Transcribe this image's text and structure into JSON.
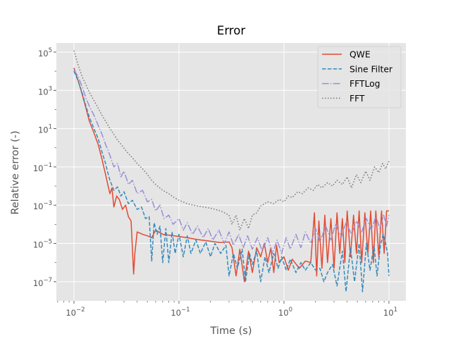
{
  "chart_data": {
    "type": "line",
    "title": "Error",
    "xlabel": "Time (s)",
    "ylabel": "Relative error (-)",
    "xscale": "log",
    "yscale": "log",
    "xlim": [
      0.0068,
      14.5
    ],
    "ylim": [
      1e-08,
      300000.0
    ],
    "grid": true,
    "legend_position": "top-right",
    "x_ticks": [
      0.01,
      0.1,
      1,
      10
    ],
    "x_tick_labels": [
      {
        "base": "10",
        "exp": "−2"
      },
      {
        "base": "10",
        "exp": "−1"
      },
      {
        "base": "10",
        "exp": "0"
      },
      {
        "base": "10",
        "exp": "1"
      }
    ],
    "y_ticks": [
      1e-07,
      1e-05,
      0.001,
      0.1,
      10,
      1000,
      100000
    ],
    "y_tick_labels": [
      {
        "base": "10",
        "exp": "−7"
      },
      {
        "base": "10",
        "exp": "−5"
      },
      {
        "base": "10",
        "exp": "−3"
      },
      {
        "base": "10",
        "exp": "−1"
      },
      {
        "base": "10",
        "exp": "1"
      },
      {
        "base": "10",
        "exp": "3"
      },
      {
        "base": "10",
        "exp": "5"
      }
    ],
    "series": [
      {
        "name": "QWE",
        "color": "#E24A33",
        "dash": "solid",
        "points": [
          [
            0.01,
            15000.0
          ],
          [
            0.011,
            3000.0
          ],
          [
            0.012,
            600
          ],
          [
            0.013,
            120
          ],
          [
            0.014,
            25
          ],
          [
            0.0155,
            6
          ],
          [
            0.017,
            1.5
          ],
          [
            0.0185,
            0.25
          ],
          [
            0.02,
            0.04
          ],
          [
            0.021,
            0.012
          ],
          [
            0.022,
            0.004
          ],
          [
            0.023,
            0.008
          ],
          [
            0.024,
            0.0008
          ],
          [
            0.0255,
            0.003
          ],
          [
            0.027,
            0.002
          ],
          [
            0.029,
            0.0006
          ],
          [
            0.031,
            0.001
          ],
          [
            0.033,
            0.00025
          ],
          [
            0.035,
            0.00015
          ],
          [
            0.037,
            2.5e-07
          ],
          [
            0.038,
            3e-06
          ],
          [
            0.04,
            4e-05
          ],
          [
            0.045,
            3e-05
          ],
          [
            0.05,
            2.5e-05
          ],
          [
            0.055,
            2e-05
          ],
          [
            0.06,
            5e-05
          ],
          [
            0.07,
            3e-05
          ],
          [
            0.09,
            2.5e-05
          ],
          [
            0.12,
            2e-05
          ],
          [
            0.15,
            1.6e-05
          ],
          [
            0.2,
            1.3e-05
          ],
          [
            0.25,
            1.1e-05
          ],
          [
            0.3,
            1.2e-05
          ],
          [
            0.32,
            6e-06
          ],
          [
            0.35,
            2e-07
          ],
          [
            0.38,
            5e-06
          ],
          [
            0.42,
            1e-07
          ],
          [
            0.46,
            4e-06
          ],
          [
            0.5,
            3e-07
          ],
          [
            0.55,
            6e-06
          ],
          [
            0.6,
            2e-06
          ],
          [
            0.65,
            1e-05
          ],
          [
            0.7,
            1e-06
          ],
          [
            0.75,
            6e-06
          ],
          [
            0.8,
            3e-07
          ],
          [
            0.85,
            8e-06
          ],
          [
            0.9,
            1e-06
          ],
          [
            1.0,
            2e-06
          ],
          [
            1.1,
            4e-07
          ],
          [
            1.2,
            1.5e-06
          ],
          [
            1.4,
            5e-07
          ],
          [
            1.6,
            1.2e-06
          ],
          [
            1.8,
            1e-06
          ],
          [
            1.95,
            0.0004
          ],
          [
            2.05,
            2e-07
          ],
          [
            2.15,
            0.00015
          ],
          [
            2.3,
            5e-07
          ],
          [
            2.45,
            0.0003
          ],
          [
            2.6,
            1e-06
          ],
          [
            2.8,
            0.0002
          ],
          [
            3.0,
            5e-07
          ],
          [
            3.2,
            0.0004
          ],
          [
            3.4,
            3e-06
          ],
          [
            3.6,
            0.0002
          ],
          [
            3.8,
            1e-06
          ],
          [
            4.0,
            0.0005
          ],
          [
            4.3,
            2e-06
          ],
          [
            4.6,
            0.0003
          ],
          [
            4.9,
            3e-06
          ],
          [
            5.2,
            0.0005
          ],
          [
            5.5,
            1e-06
          ],
          [
            5.9,
            0.0004
          ],
          [
            6.3,
            3e-06
          ],
          [
            6.7,
            0.0005
          ],
          [
            7.1,
            1e-06
          ],
          [
            7.5,
            0.0005
          ],
          [
            8.0,
            2e-06
          ],
          [
            8.5,
            0.0005
          ],
          [
            9.0,
            3e-06
          ],
          [
            9.5,
            0.0005
          ],
          [
            10.0,
            0.0005
          ]
        ]
      },
      {
        "name": "Sine Filter",
        "color": "#348ABD",
        "dash": "dashed",
        "points": [
          [
            0.01,
            10000.0
          ],
          [
            0.011,
            3000.0
          ],
          [
            0.012,
            700
          ],
          [
            0.013,
            150
          ],
          [
            0.014,
            40
          ],
          [
            0.0155,
            10
          ],
          [
            0.017,
            3
          ],
          [
            0.0185,
            0.6
          ],
          [
            0.02,
            0.15
          ],
          [
            0.021,
            0.05
          ],
          [
            0.022,
            0.02
          ],
          [
            0.024,
            0.006
          ],
          [
            0.026,
            0.009
          ],
          [
            0.028,
            0.003
          ],
          [
            0.03,
            0.005
          ],
          [
            0.033,
            0.0012
          ],
          [
            0.036,
            0.0018
          ],
          [
            0.04,
            0.0006
          ],
          [
            0.044,
            0.0008
          ],
          [
            0.048,
            0.0002
          ],
          [
            0.052,
            0.00025
          ],
          [
            0.055,
            1.2e-06
          ],
          [
            0.058,
            0.00012
          ],
          [
            0.062,
            3e-05
          ],
          [
            0.066,
            8e-05
          ],
          [
            0.07,
            1e-06
          ],
          [
            0.075,
            6e-05
          ],
          [
            0.08,
            1e-06
          ],
          [
            0.086,
            4e-05
          ],
          [
            0.092,
            3e-06
          ],
          [
            0.1,
            3e-05
          ],
          [
            0.11,
            2e-06
          ],
          [
            0.12,
            2.5e-05
          ],
          [
            0.13,
            3e-06
          ],
          [
            0.145,
            1.5e-05
          ],
          [
            0.16,
            3e-06
          ],
          [
            0.18,
            1.2e-05
          ],
          [
            0.2,
            2e-06
          ],
          [
            0.22,
            1e-05
          ],
          [
            0.25,
            3e-06
          ],
          [
            0.28,
            8e-06
          ],
          [
            0.3,
            2e-07
          ],
          [
            0.33,
            3e-06
          ],
          [
            0.36,
            5e-07
          ],
          [
            0.4,
            5e-06
          ],
          [
            0.43,
            1e-07
          ],
          [
            0.47,
            3e-06
          ],
          [
            0.5,
            8e-07
          ],
          [
            0.55,
            4e-06
          ],
          [
            0.6,
            1e-07
          ],
          [
            0.66,
            2e-06
          ],
          [
            0.72,
            3e-07
          ],
          [
            0.8,
            3e-06
          ],
          [
            0.88,
            5e-07
          ],
          [
            0.95,
            2e-06
          ],
          [
            1.05,
            4e-07
          ],
          [
            1.15,
            1.5e-06
          ],
          [
            1.3,
            3e-07
          ],
          [
            1.45,
            1e-06
          ],
          [
            1.6,
            4e-07
          ],
          [
            1.8,
            1e-06
          ],
          [
            2.0,
            4e-07
          ],
          [
            2.2,
            5e-07
          ],
          [
            2.4,
            1e-07
          ],
          [
            2.6,
            3e-07
          ],
          [
            2.9,
            8e-07
          ],
          [
            3.2,
            6e-08
          ],
          [
            3.6,
            4e-06
          ],
          [
            3.9,
            3e-08
          ],
          [
            4.3,
            6e-06
          ],
          [
            4.7,
            1e-07
          ],
          [
            5.2,
            1e-05
          ],
          [
            5.6,
            3e-08
          ],
          [
            6.1,
            1e-05
          ],
          [
            6.6,
            4e-07
          ],
          [
            7.2,
            8e-06
          ],
          [
            7.7,
            2e-07
          ],
          [
            8.3,
            8e-06
          ],
          [
            8.8,
            3e-05
          ],
          [
            9.3,
            1e-05
          ],
          [
            9.7,
            3e-06
          ],
          [
            10.0,
            2e-07
          ]
        ]
      },
      {
        "name": "FFTLog",
        "color": "#988ED5",
        "dash": "dashdot",
        "points": [
          [
            0.01,
            12000.0
          ],
          [
            0.011,
            5000.0
          ],
          [
            0.012,
            1500
          ],
          [
            0.013,
            400
          ],
          [
            0.014,
            150
          ],
          [
            0.0155,
            50
          ],
          [
            0.017,
            15
          ],
          [
            0.0185,
            5
          ],
          [
            0.02,
            1.5
          ],
          [
            0.021,
            0.8
          ],
          [
            0.022,
            0.4
          ],
          [
            0.024,
            0.1
          ],
          [
            0.026,
            0.15
          ],
          [
            0.028,
            0.03
          ],
          [
            0.03,
            0.06
          ],
          [
            0.033,
            0.012
          ],
          [
            0.036,
            0.02
          ],
          [
            0.04,
            0.004
          ],
          [
            0.045,
            0.006
          ],
          [
            0.05,
            0.0015
          ],
          [
            0.055,
            0.002
          ],
          [
            0.06,
            0.0005
          ],
          [
            0.066,
            0.001
          ],
          [
            0.072,
            0.0002
          ],
          [
            0.08,
            0.0003
          ],
          [
            0.088,
            0.0001
          ],
          [
            0.1,
            0.0002
          ],
          [
            0.11,
            5e-05
          ],
          [
            0.12,
            0.00012
          ],
          [
            0.135,
            3e-05
          ],
          [
            0.15,
            8e-05
          ],
          [
            0.17,
            2e-05
          ],
          [
            0.19,
            6e-05
          ],
          [
            0.21,
            1.5e-05
          ],
          [
            0.24,
            5e-05
          ],
          [
            0.27,
            1e-05
          ],
          [
            0.3,
            4e-05
          ],
          [
            0.33,
            8e-06
          ],
          [
            0.37,
            3e-05
          ],
          [
            0.41,
            6e-06
          ],
          [
            0.45,
            2.5e-05
          ],
          [
            0.5,
            5e-06
          ],
          [
            0.56,
            2e-05
          ],
          [
            0.62,
            4e-06
          ],
          [
            0.7,
            2e-05
          ],
          [
            0.78,
            3e-06
          ],
          [
            0.86,
            1.5e-05
          ],
          [
            0.95,
            3e-06
          ],
          [
            1.05,
            2e-05
          ],
          [
            1.15,
            5e-06
          ],
          [
            1.3,
            3e-05
          ],
          [
            1.45,
            6e-06
          ],
          [
            1.6,
            4e-05
          ],
          [
            1.8,
            1e-05
          ],
          [
            2.0,
            6e-05
          ],
          [
            2.2,
            1.2e-05
          ],
          [
            2.5,
            8e-05
          ],
          [
            2.8,
            1.5e-05
          ],
          [
            3.1,
            0.0001
          ],
          [
            3.5,
            2e-05
          ],
          [
            3.9,
            0.00012
          ],
          [
            4.4,
            3e-05
          ],
          [
            4.9,
            0.00015
          ],
          [
            5.5,
            4e-05
          ],
          [
            6.1,
            0.0002
          ],
          [
            6.8,
            5e-05
          ],
          [
            7.5,
            0.00025
          ],
          [
            8.2,
            6e-05
          ],
          [
            8.9,
            0.0003
          ],
          [
            9.5,
            8e-05
          ],
          [
            10.0,
            0.0003
          ]
        ]
      },
      {
        "name": "FFT",
        "color": "#777777",
        "dash": "dotted",
        "points": [
          [
            0.01,
            120000.0
          ],
          [
            0.011,
            20000.0
          ],
          [
            0.012,
            5000.0
          ],
          [
            0.013,
            2000.0
          ],
          [
            0.014,
            800
          ],
          [
            0.0155,
            300
          ],
          [
            0.017,
            120
          ],
          [
            0.0185,
            50
          ],
          [
            0.02,
            25
          ],
          [
            0.022,
            10
          ],
          [
            0.024,
            5
          ],
          [
            0.026,
            2.5
          ],
          [
            0.029,
            1.2
          ],
          [
            0.032,
            0.6
          ],
          [
            0.036,
            0.3
          ],
          [
            0.04,
            0.15
          ],
          [
            0.045,
            0.08
          ],
          [
            0.05,
            0.04
          ],
          [
            0.055,
            0.02
          ],
          [
            0.06,
            0.012
          ],
          [
            0.07,
            0.006
          ],
          [
            0.08,
            0.004
          ],
          [
            0.09,
            0.0025
          ],
          [
            0.1,
            0.0018
          ],
          [
            0.12,
            0.0012
          ],
          [
            0.15,
            0.0009
          ],
          [
            0.2,
            0.0007
          ],
          [
            0.25,
            0.0005
          ],
          [
            0.3,
            0.0003
          ],
          [
            0.32,
            0.0001
          ],
          [
            0.35,
            0.0003
          ],
          [
            0.38,
            5e-05
          ],
          [
            0.42,
            0.0002
          ],
          [
            0.46,
            6e-05
          ],
          [
            0.5,
            0.0003
          ],
          [
            0.55,
            0.0004
          ],
          [
            0.6,
            0.0009
          ],
          [
            0.7,
            0.0015
          ],
          [
            0.8,
            0.0012
          ],
          [
            0.9,
            0.002
          ],
          [
            1.0,
            0.0015
          ],
          [
            1.1,
            0.003
          ],
          [
            1.2,
            0.0025
          ],
          [
            1.35,
            0.005
          ],
          [
            1.5,
            0.004
          ],
          [
            1.7,
            0.008
          ],
          [
            1.9,
            0.006
          ],
          [
            2.1,
            0.012
          ],
          [
            2.3,
            0.008
          ],
          [
            2.6,
            0.015
          ],
          [
            2.9,
            0.01
          ],
          [
            3.2,
            0.02
          ],
          [
            3.6,
            0.012
          ],
          [
            4.0,
            0.03
          ],
          [
            4.4,
            0.008
          ],
          [
            4.9,
            0.04
          ],
          [
            5.4,
            0.015
          ],
          [
            6.0,
            0.06
          ],
          [
            6.6,
            0.02
          ],
          [
            7.3,
            0.1
          ],
          [
            8.0,
            0.05
          ],
          [
            8.7,
            0.15
          ],
          [
            9.3,
            0.08
          ],
          [
            10.0,
            0.2
          ]
        ]
      }
    ]
  }
}
